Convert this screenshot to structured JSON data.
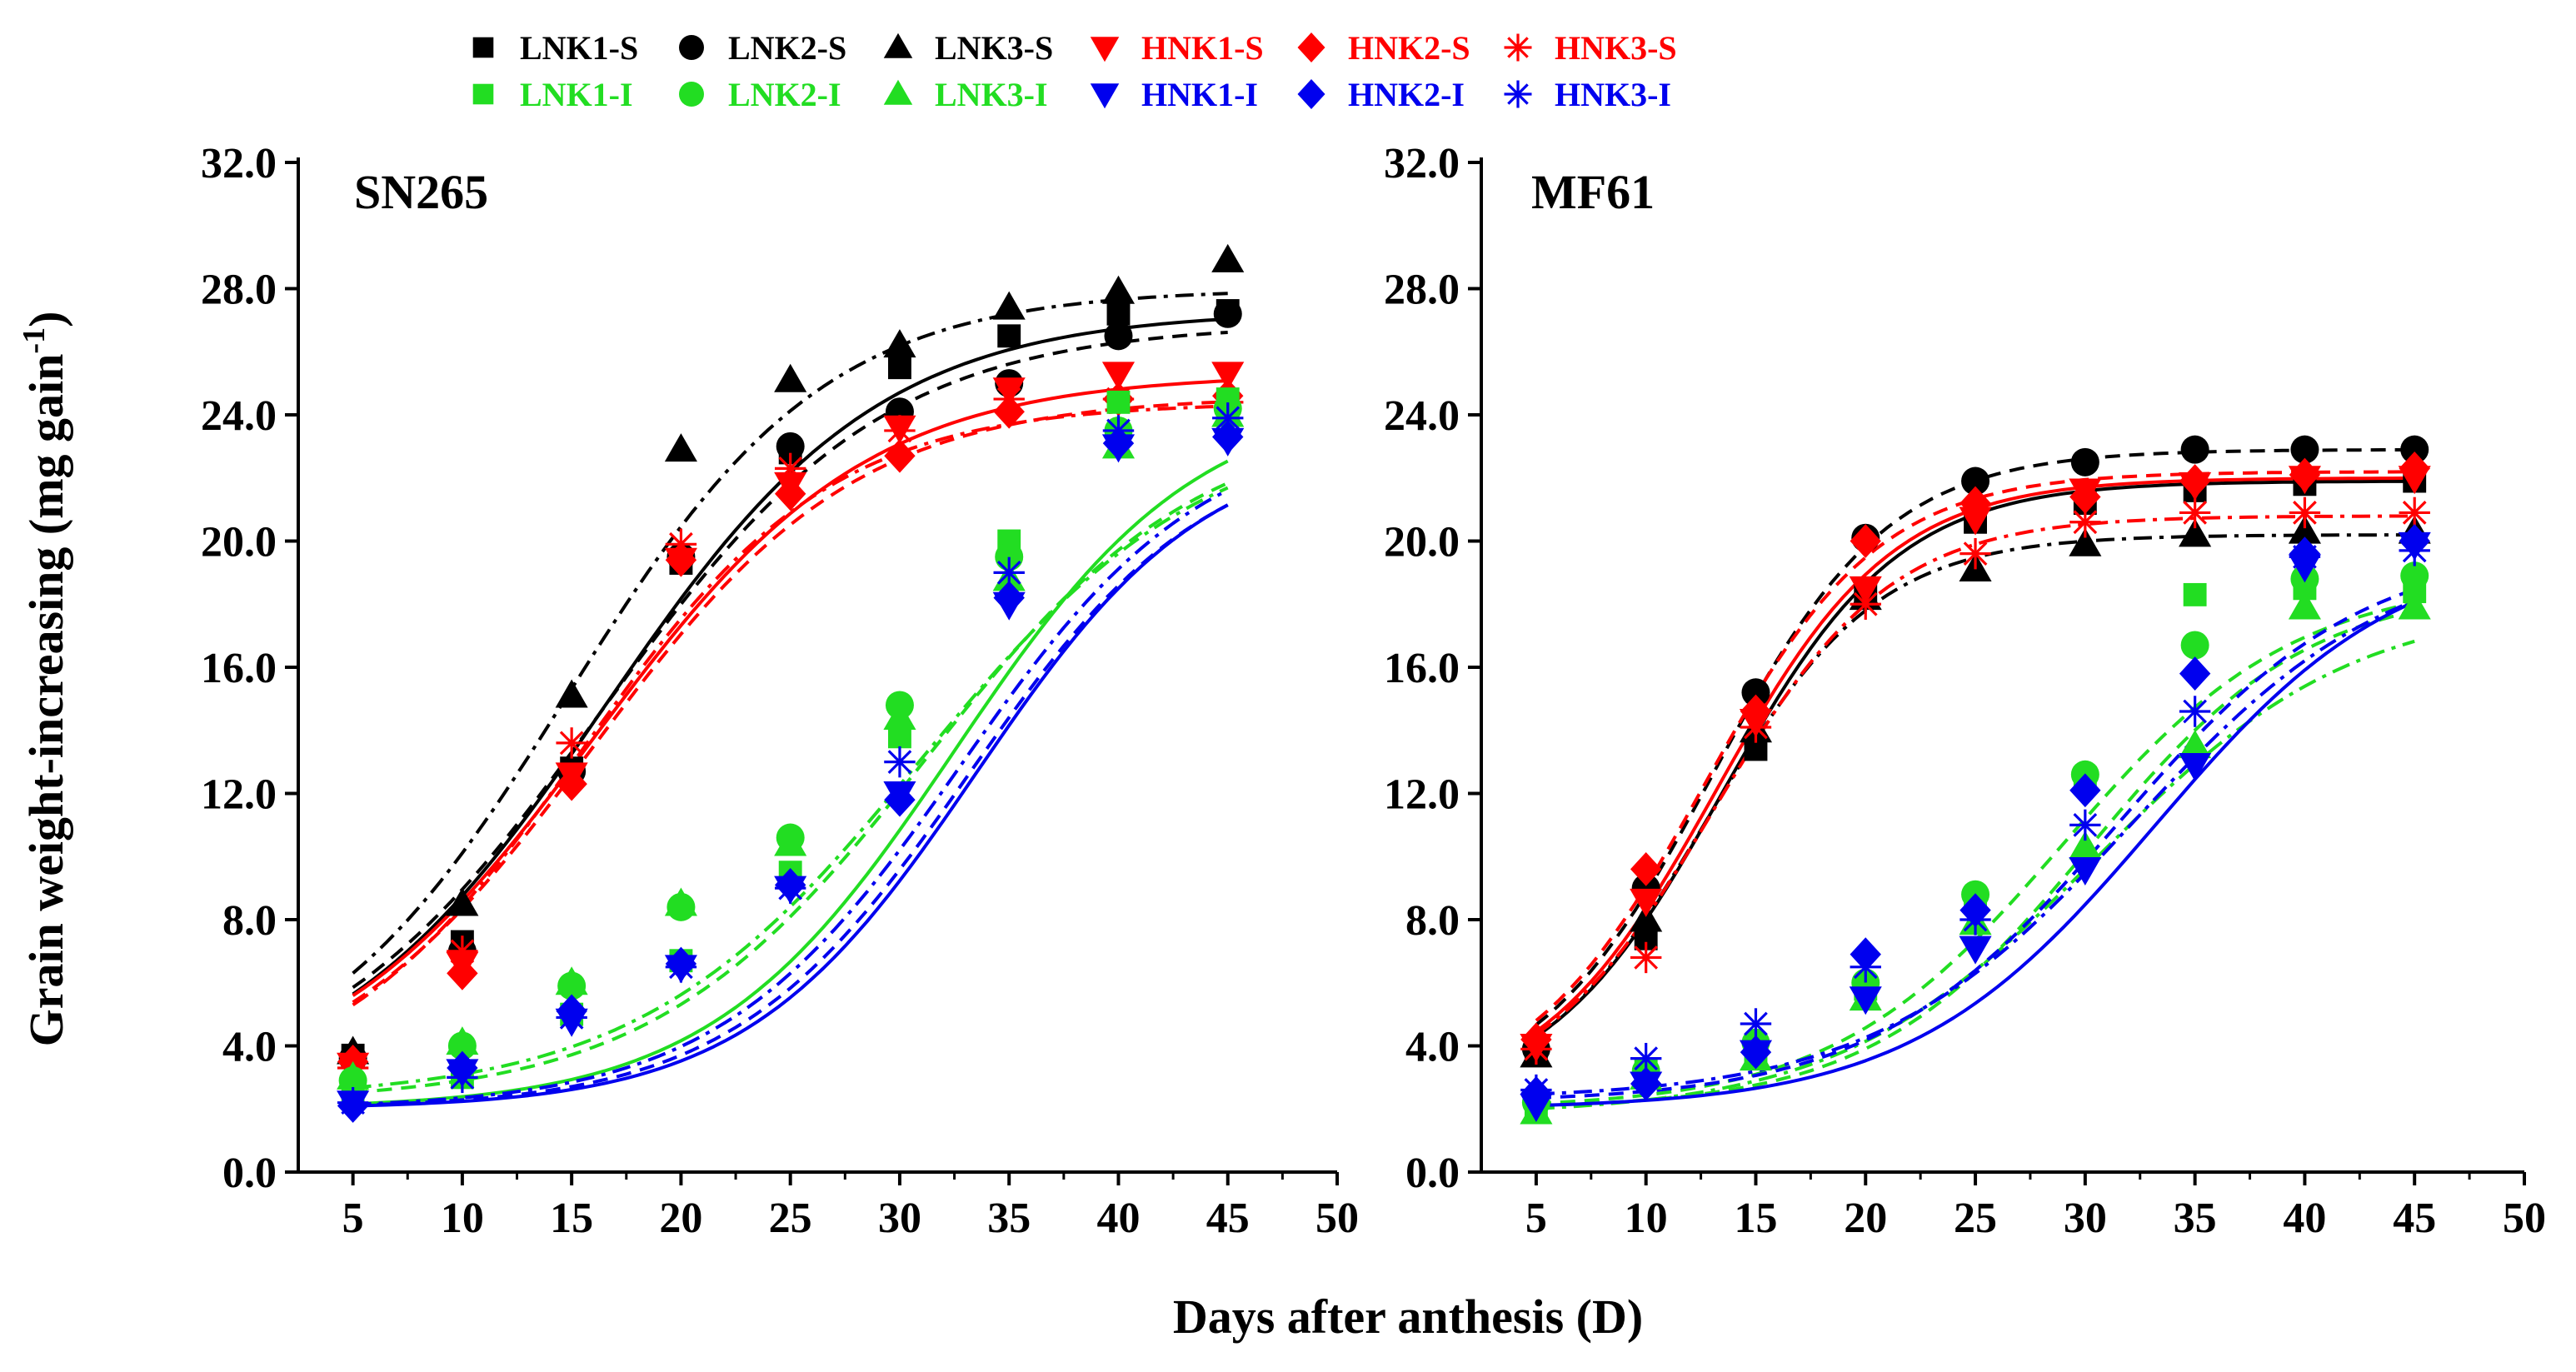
{
  "chart_data": {
    "type": "scatter",
    "xlabel": "Days after anthesis (D)",
    "ylabel": "Grain weight-increasing (mg gain",
    "ylabel_superscript": "-1",
    "ylabel_close": ")",
    "x_ticks": [
      5,
      10,
      15,
      20,
      25,
      30,
      35,
      40,
      45,
      50
    ],
    "y_ticks": [
      "0.0",
      "4.0",
      "8.0",
      "12.0",
      "16.0",
      "20.0",
      "24.0",
      "28.0",
      "32.0"
    ],
    "xlim": [
      2.5,
      50
    ],
    "ylim": [
      0,
      32
    ],
    "x": [
      5,
      10,
      15,
      20,
      25,
      30,
      35,
      40,
      45
    ],
    "legend": [
      {
        "name": "LNK1-S",
        "color": "#000000",
        "marker": "square"
      },
      {
        "name": "LNK2-S",
        "color": "#000000",
        "marker": "circle"
      },
      {
        "name": "LNK3-S",
        "color": "#000000",
        "marker": "triangle-up"
      },
      {
        "name": "HNK1-S",
        "color": "#ff0000",
        "marker": "triangle-down"
      },
      {
        "name": "HNK2-S",
        "color": "#ff0000",
        "marker": "diamond"
      },
      {
        "name": "HNK3-S",
        "color": "#ff0000",
        "marker": "asterisk"
      },
      {
        "name": "LNK1-I",
        "color": "#22dd22",
        "marker": "square"
      },
      {
        "name": "LNK2-I",
        "color": "#22dd22",
        "marker": "circle"
      },
      {
        "name": "LNK3-I",
        "color": "#22dd22",
        "marker": "triangle-up"
      },
      {
        "name": "HNK1-I",
        "color": "#0000ee",
        "marker": "triangle-down"
      },
      {
        "name": "HNK2-I",
        "color": "#0000ee",
        "marker": "diamond"
      },
      {
        "name": "HNK3-I",
        "color": "#0000ee",
        "marker": "asterisk"
      }
    ],
    "panels": [
      {
        "title": "SN265",
        "series": [
          {
            "name": "LNK1-S",
            "values": [
              3.7,
              7.3,
              12.8,
              19.3,
              22.8,
              25.5,
              26.5,
              27.2,
              27.3
            ],
            "fit": {
              "A": 27.3,
              "xc": 16.5,
              "k": 0.16,
              "y0": 2.2
            },
            "dash": "solid"
          },
          {
            "name": "LNK2-S",
            "values": [
              3.6,
              7.0,
              12.7,
              19.5,
              23.0,
              24.1,
              25.0,
              26.5,
              27.2
            ],
            "fit": {
              "A": 26.9,
              "xc": 16.3,
              "k": 0.155,
              "y0": 2.2
            },
            "dash": "dash"
          },
          {
            "name": "LNK3-S",
            "values": [
              3.8,
              8.5,
              15.1,
              22.9,
              25.1,
              26.2,
              27.4,
              27.9,
              28.9
            ],
            "fit": {
              "A": 28.0,
              "xc": 14.8,
              "k": 0.17,
              "y0": 2.2
            },
            "dash": "dashdot"
          },
          {
            "name": "HNK1-S",
            "values": [
              3.4,
              6.6,
              12.6,
              19.4,
              21.8,
              23.6,
              24.8,
              25.3,
              25.3
            ],
            "fit": {
              "A": 25.3,
              "xc": 16.0,
              "k": 0.16,
              "y0": 2.2
            },
            "dash": "solid"
          },
          {
            "name": "HNK2-S",
            "values": [
              3.5,
              6.3,
              12.3,
              19.4,
              21.5,
              22.7,
              24.1,
              24.5,
              24.6
            ],
            "fit": {
              "A": 24.6,
              "xc": 15.9,
              "k": 0.165,
              "y0": 2.2
            },
            "dash": "dash"
          },
          {
            "name": "HNK3-S",
            "values": [
              3.3,
              7.0,
              13.6,
              19.9,
              22.3,
              23.5,
              24.5,
              24.5,
              24.4
            ],
            "fit": {
              "A": 24.4,
              "xc": 15.4,
              "k": 0.175,
              "y0": 2.2
            },
            "dash": "dashdot"
          },
          {
            "name": "LNK1-I",
            "values": [
              2.6,
              3.0,
              5.0,
              6.7,
              9.5,
              13.8,
              20.0,
              24.4,
              24.5
            ],
            "fit": {
              "A": 24.7,
              "xc": 32.5,
              "k": 0.18,
              "y0": 2.0
            },
            "dash": "solid"
          },
          {
            "name": "LNK2-I",
            "values": [
              2.9,
              4.0,
              5.9,
              8.4,
              10.6,
              14.8,
              19.5,
              23.5,
              24.2
            ],
            "fit": {
              "A": 24.0,
              "xc": 31.2,
              "k": 0.16,
              "y0": 2.2
            },
            "dash": "dash"
          },
          {
            "name": "LNK3-I",
            "values": [
              3.0,
              4.1,
              6.0,
              8.5,
              10.4,
              14.4,
              18.8,
              23.0,
              24.0
            ],
            "fit": {
              "A": 23.9,
              "xc": 31.0,
              "k": 0.155,
              "y0": 2.3
            },
            "dash": "dashdot"
          },
          {
            "name": "HNK1-I",
            "values": [
              2.2,
              3.2,
              4.8,
              6.5,
              9.0,
              12.0,
              18.0,
              23.0,
              23.2
            ],
            "fit": {
              "A": 23.3,
              "xc": 33.5,
              "k": 0.19,
              "y0": 2.0
            },
            "dash": "solid"
          },
          {
            "name": "HNK2-I",
            "values": [
              2.1,
              3.3,
              5.1,
              6.6,
              9.1,
              11.8,
              18.2,
              23.1,
              23.3
            ],
            "fit": {
              "A": 23.3,
              "xc": 33.2,
              "k": 0.185,
              "y0": 2.0
            },
            "dash": "dash"
          },
          {
            "name": "HNK3-I",
            "values": [
              2.2,
              3.0,
              4.9,
              6.5,
              9.0,
              13.0,
              19.0,
              23.5,
              23.9
            ],
            "fit": {
              "A": 23.8,
              "xc": 32.8,
              "k": 0.18,
              "y0": 2.0
            },
            "dash": "dashdot"
          }
        ]
      },
      {
        "title": "MF61",
        "series": [
          {
            "name": "LNK1-S",
            "values": [
              3.8,
              7.4,
              13.4,
              18.4,
              20.6,
              21.2,
              21.6,
              21.8,
              21.9
            ],
            "fit": {
              "A": 21.9,
              "xc": 13.5,
              "k": 0.25,
              "y0": 2.2
            },
            "dash": "solid"
          },
          {
            "name": "LNK2-S",
            "values": [
              3.9,
              9.0,
              15.2,
              20.1,
              21.9,
              22.5,
              22.9,
              22.9,
              22.9
            ],
            "fit": {
              "A": 22.9,
              "xc": 13.0,
              "k": 0.25,
              "y0": 2.2
            },
            "dash": "dash"
          },
          {
            "name": "LNK3-S",
            "values": [
              3.7,
              8.0,
              14.0,
              18.2,
              19.1,
              19.9,
              20.2,
              20.3,
              20.3
            ],
            "fit": {
              "A": 20.2,
              "xc": 12.8,
              "k": 0.26,
              "y0": 2.2
            },
            "dash": "dashdot"
          },
          {
            "name": "HNK1-S",
            "values": [
              4.0,
              8.6,
              14.3,
              18.5,
              20.7,
              21.6,
              21.8,
              22.0,
              22.0
            ],
            "fit": {
              "A": 22.0,
              "xc": 13.2,
              "k": 0.25,
              "y0": 2.2
            },
            "dash": "solid"
          },
          {
            "name": "HNK2-S",
            "values": [
              4.2,
              9.6,
              14.6,
              20.0,
              21.2,
              21.4,
              21.9,
              22.1,
              22.3
            ],
            "fit": {
              "A": 22.2,
              "xc": 12.6,
              "k": 0.25,
              "y0": 2.2
            },
            "dash": "dash"
          },
          {
            "name": "HNK3-S",
            "values": [
              3.9,
              6.8,
              14.1,
              18.0,
              19.6,
              20.6,
              20.9,
              20.9,
              20.9
            ],
            "fit": {
              "A": 20.8,
              "xc": 13.1,
              "k": 0.25,
              "y0": 2.2
            },
            "dash": "dashdot"
          },
          {
            "name": "LNK1-I",
            "values": [
              2.0,
              3.2,
              3.8,
              5.8,
              8.6,
              12.5,
              18.3,
              18.5,
              18.4
            ],
            "fit": {
              "A": 18.6,
              "xc": 30.2,
              "k": 0.2,
              "y0": 2.0
            },
            "dash": "dash"
          },
          {
            "name": "LNK2-I",
            "values": [
              2.2,
              3.2,
              4.1,
              6.0,
              8.8,
              12.6,
              16.7,
              18.8,
              18.9
            ],
            "fit": {
              "A": 18.8,
              "xc": 29.0,
              "k": 0.19,
              "y0": 2.0
            },
            "dash": "dash"
          },
          {
            "name": "LNK3-I",
            "values": [
              1.9,
              3.0,
              3.6,
              5.5,
              7.9,
              10.3,
              13.5,
              17.9,
              17.9
            ],
            "fit": {
              "A": 18.1,
              "xc": 30.5,
              "k": 0.17,
              "y0": 1.8
            },
            "dash": "dashdot"
          },
          {
            "name": "HNK1-I",
            "values": [
              2.1,
              2.8,
              3.8,
              5.5,
              7.1,
              9.6,
              12.9,
              19.2,
              19.9
            ],
            "fit": {
              "A": 20.0,
              "xc": 33.2,
              "k": 0.18,
              "y0": 2.0
            },
            "dash": "solid"
          },
          {
            "name": "HNK2-I",
            "values": [
              2.5,
              2.8,
              3.8,
              6.9,
              8.3,
              12.1,
              15.8,
              19.6,
              20.0
            ],
            "fit": {
              "A": 19.9,
              "xc": 31.5,
              "k": 0.18,
              "y0": 2.2
            },
            "dash": "dash"
          },
          {
            "name": "HNK3-I",
            "values": [
              2.6,
              3.6,
              4.7,
              6.5,
              8.0,
              11.0,
              14.6,
              19.5,
              19.7
            ],
            "fit": {
              "A": 19.9,
              "xc": 32.2,
              "k": 0.17,
              "y0": 2.3
            },
            "dash": "dashdot"
          }
        ]
      }
    ]
  }
}
